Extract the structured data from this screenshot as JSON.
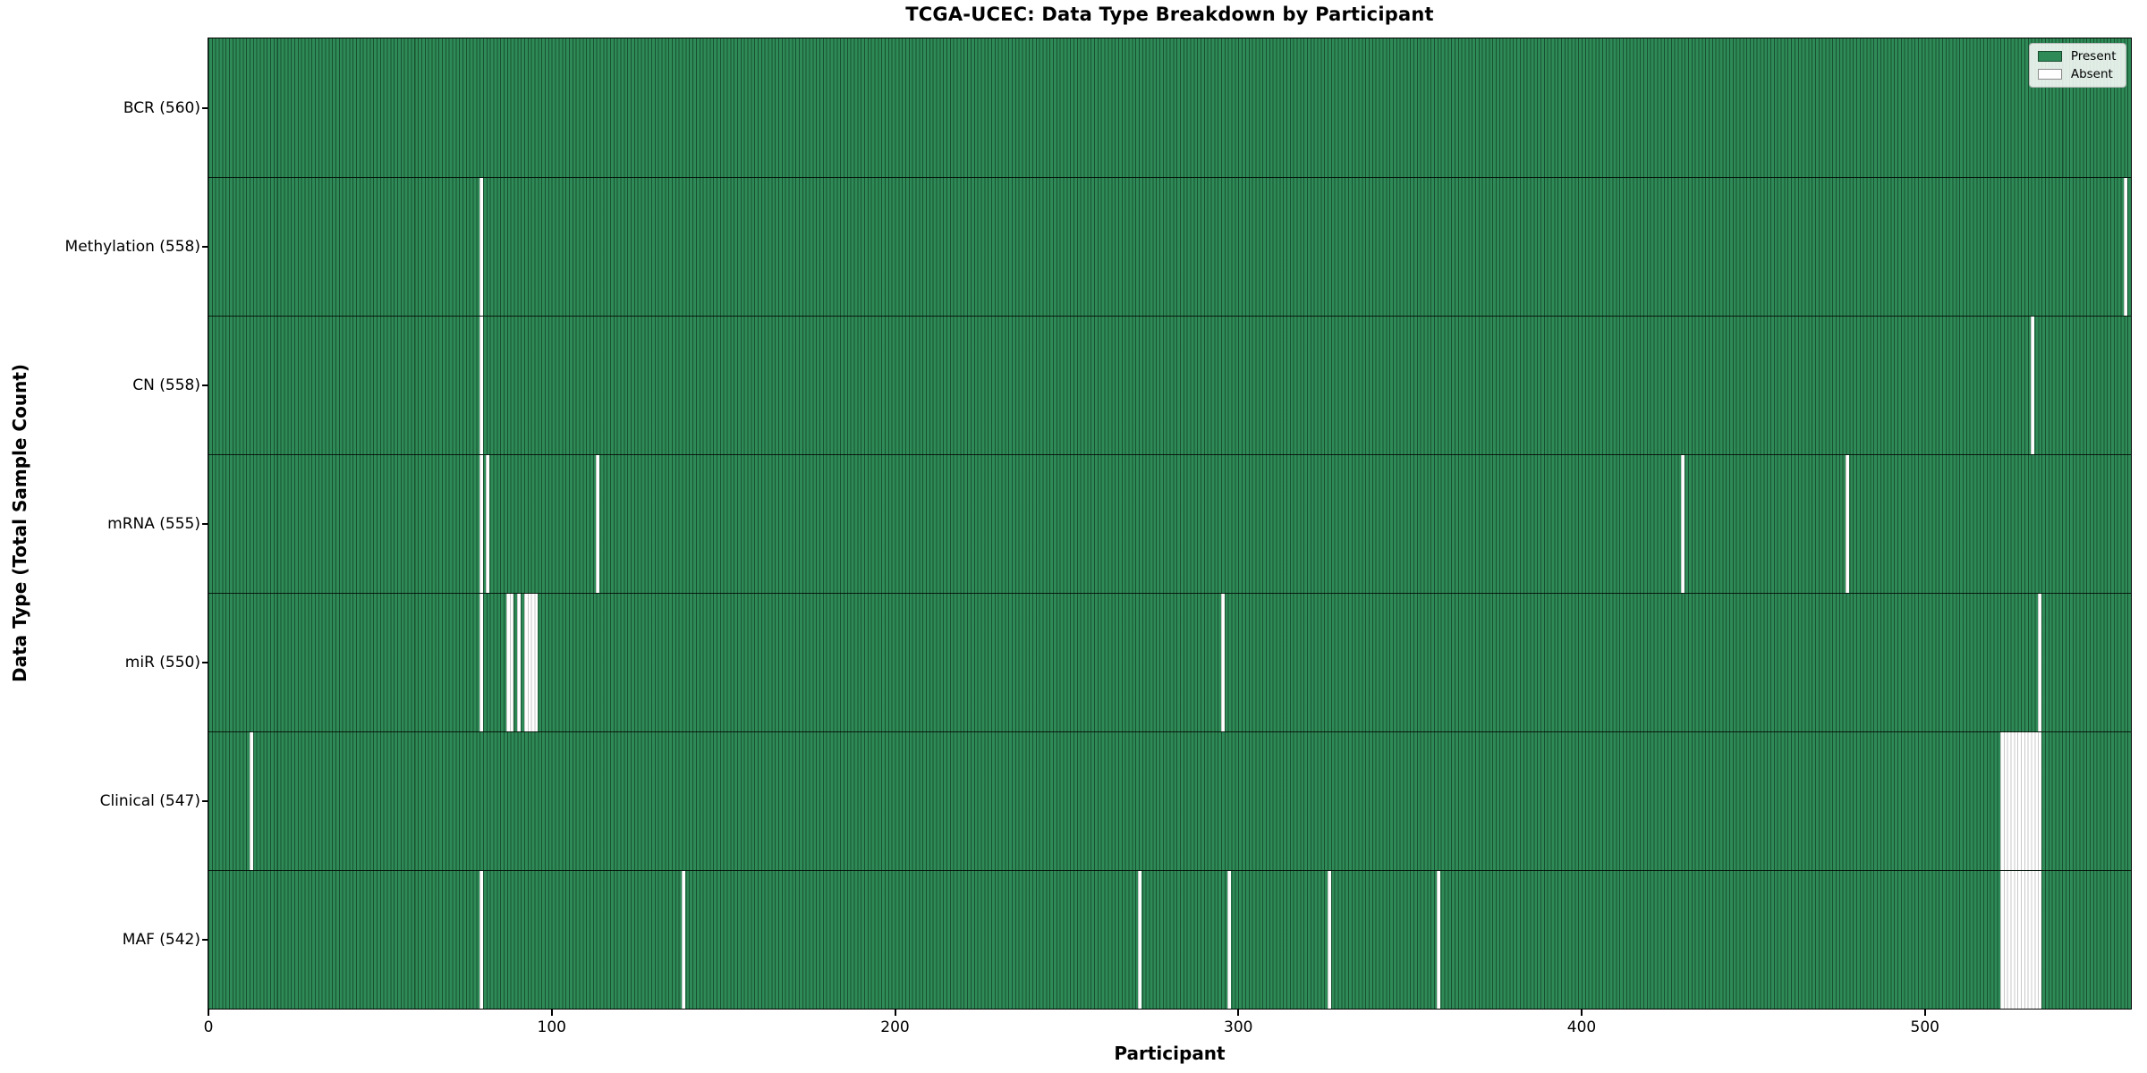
{
  "chart_data": {
    "type": "heatmap",
    "title": "TCGA-UCEC: Data Type Breakdown by Participant",
    "xlabel": "Participant",
    "ylabel": "Data Type (Total Sample Count)",
    "xlim": [
      0,
      560
    ],
    "n_participants": 560,
    "x_ticks": [
      0,
      100,
      200,
      300,
      400,
      500
    ],
    "grid": false,
    "legend_position": "upper right",
    "present_color": "#2e8b57",
    "absent_color": "#ffffff",
    "legend": [
      {
        "label": "Present",
        "color": "#2e8b57"
      },
      {
        "label": "Absent",
        "color": "#ffffff"
      }
    ],
    "rows": [
      {
        "label": "BCR (560)",
        "data_type": "BCR",
        "total": 560,
        "absent_runs": []
      },
      {
        "label": "Methylation (558)",
        "data_type": "Methylation",
        "total": 558,
        "absent_runs": [
          [
            79,
            1
          ],
          [
            558,
            1
          ]
        ]
      },
      {
        "label": "CN (558)",
        "data_type": "CN",
        "total": 558,
        "absent_runs": [
          [
            79,
            1
          ],
          [
            531,
            1
          ]
        ]
      },
      {
        "label": "mRNA (555)",
        "data_type": "mRNA",
        "total": 555,
        "absent_runs": [
          [
            79,
            1
          ],
          [
            81,
            1
          ],
          [
            113,
            1
          ],
          [
            429,
            1
          ],
          [
            477,
            1
          ]
        ]
      },
      {
        "label": "miR (550)",
        "data_type": "miR",
        "total": 550,
        "absent_runs": [
          [
            79,
            1
          ],
          [
            87,
            2
          ],
          [
            90,
            1
          ],
          [
            92,
            4
          ],
          [
            295,
            1
          ],
          [
            533,
            1
          ]
        ]
      },
      {
        "label": "Clinical (547)",
        "data_type": "Clinical",
        "total": 547,
        "absent_runs": [
          [
            12,
            1
          ],
          [
            522,
            12
          ]
        ]
      },
      {
        "label": "MAF (542)",
        "data_type": "MAF",
        "total": 542,
        "absent_runs": [
          [
            79,
            1
          ],
          [
            138,
            1
          ],
          [
            271,
            1
          ],
          [
            297,
            1
          ],
          [
            326,
            1
          ],
          [
            358,
            1
          ],
          [
            522,
            12
          ]
        ]
      }
    ]
  }
}
